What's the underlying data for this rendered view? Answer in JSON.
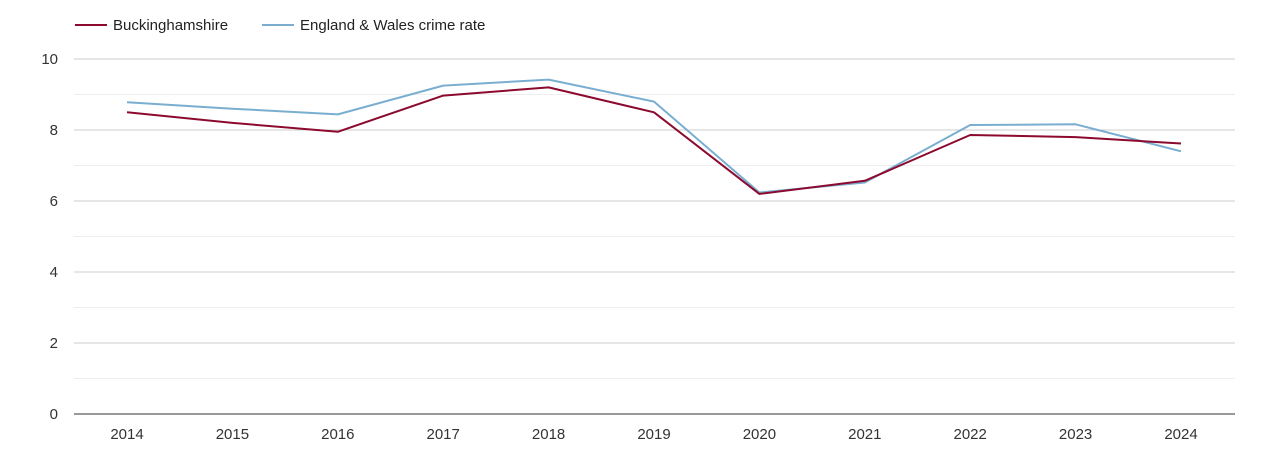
{
  "chart_data": {
    "type": "line",
    "title": "",
    "xlabel": "",
    "ylabel": "",
    "x": [
      "2014",
      "2015",
      "2016",
      "2017",
      "2018",
      "2019",
      "2020",
      "2021",
      "2022",
      "2023",
      "2024"
    ],
    "series": [
      {
        "name": "Buckinghamshire",
        "color": "#8b0a2e",
        "values": [
          8.5,
          8.2,
          7.95,
          8.97,
          9.2,
          8.5,
          6.2,
          6.57,
          7.86,
          7.8,
          7.62
        ]
      },
      {
        "name": "England & Wales crime rate",
        "color": "#7aaed0",
        "values": [
          8.78,
          8.6,
          8.44,
          9.25,
          9.42,
          8.8,
          6.24,
          6.52,
          8.14,
          8.16,
          7.4
        ]
      }
    ],
    "ylim": [
      0,
      10
    ],
    "yticks": [
      "0",
      "2",
      "4",
      "6",
      "8",
      "10"
    ],
    "grid": true,
    "legend_position": "top-left"
  }
}
